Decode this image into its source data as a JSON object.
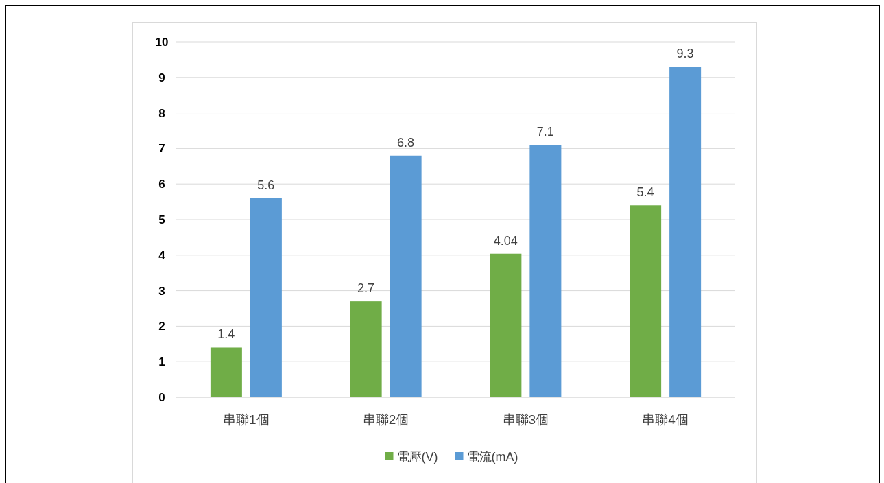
{
  "chart_data": {
    "type": "bar",
    "categories": [
      "串聯1個",
      "串聯2個",
      "串聯3個",
      "串聯4個"
    ],
    "series": [
      {
        "name": "電壓(V)",
        "color": "#70ad47",
        "values": [
          1.4,
          2.7,
          4.04,
          5.4
        ]
      },
      {
        "name": "電流(mA)",
        "color": "#5b9bd5",
        "values": [
          5.6,
          6.8,
          7.1,
          9.3
        ]
      }
    ],
    "ylim": [
      0,
      10
    ],
    "yticks": [
      0,
      1,
      2,
      3,
      4,
      5,
      6,
      7,
      8,
      9,
      10
    ],
    "grid": "y",
    "legend": "bottom",
    "data_labels": true
  }
}
